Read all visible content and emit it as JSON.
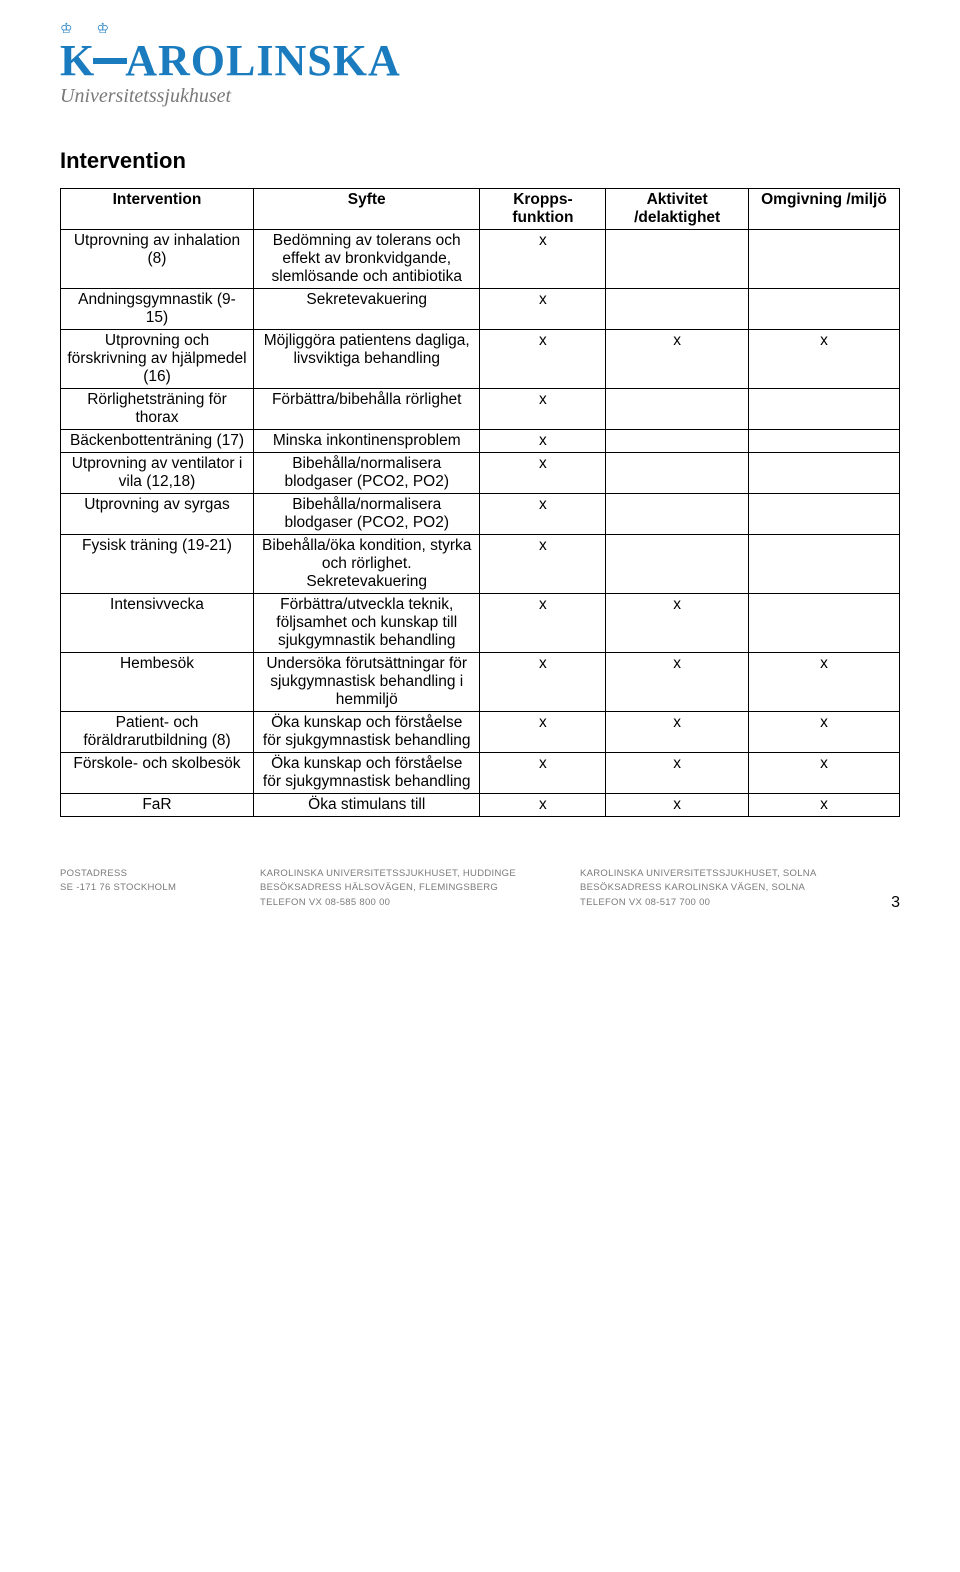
{
  "logo": {
    "name": "KAROLINSKA",
    "subtitle": "Universitetssjukhuset"
  },
  "section_title": "Intervention",
  "table": {
    "columns": [
      "Intervention",
      "Syfte",
      "Kropps-funktion",
      "Aktivitet /delaktighet",
      "Omgivning /miljö"
    ],
    "col_widths": [
      "23%",
      "27%",
      "15%",
      "17%",
      "18%"
    ],
    "rows": [
      {
        "intervention": "Utprovning av inhalation (8)",
        "syfte": "Bedömning av tolerans och effekt av bronkvidgande, slemlösande och antibiotika",
        "kf": "x",
        "ad": "",
        "om": ""
      },
      {
        "intervention": "Andningsgymnastik (9-15)",
        "syfte": "Sekretevakuering",
        "kf": "x",
        "ad": "",
        "om": ""
      },
      {
        "intervention": "Utprovning och förskrivning av hjälpmedel (16)",
        "syfte": "Möjliggöra patientens dagliga, livsviktiga behandling",
        "kf": "x",
        "ad": "x",
        "om": "x"
      },
      {
        "intervention": "Rörlighetsträning för thorax",
        "syfte": "Förbättra/bibehålla rörlighet",
        "kf": "x",
        "ad": "",
        "om": ""
      },
      {
        "intervention": "Bäckenbottenträning (17)",
        "syfte": "Minska inkontinensproblem",
        "kf": "x",
        "ad": "",
        "om": ""
      },
      {
        "intervention": "Utprovning av ventilator i vila (12,18)",
        "syfte": "Bibehålla/normalisera blodgaser (PCO2, PO2)",
        "kf": "x",
        "ad": "",
        "om": ""
      },
      {
        "intervention": "Utprovning av syrgas",
        "syfte": "Bibehålla/normalisera blodgaser (PCO2, PO2)",
        "kf": "x",
        "ad": "",
        "om": ""
      },
      {
        "intervention": "Fysisk träning (19-21)",
        "syfte": "Bibehålla/öka kondition, styrka och rörlighet. Sekretevakuering",
        "kf": "x",
        "ad": "",
        "om": ""
      },
      {
        "intervention": "Intensivvecka",
        "syfte": "Förbättra/utveckla teknik, följsamhet och kunskap till sjukgymnastik behandling",
        "kf": "x",
        "ad": "x",
        "om": ""
      },
      {
        "intervention": "Hembesök",
        "syfte": "Undersöka förutsättningar för sjukgymnastisk behandling i hemmiljö",
        "kf": "x",
        "ad": "x",
        "om": "x"
      },
      {
        "intervention": "Patient- och föräldrarutbildning (8)",
        "syfte": "Öka kunskap och förståelse för sjukgymnastisk behandling",
        "kf": "x",
        "ad": "x",
        "om": "x"
      },
      {
        "intervention": "Förskole- och skolbesök",
        "syfte": "Öka kunskap och förståelse för sjukgymnastisk behandling",
        "kf": "x",
        "ad": "x",
        "om": "x"
      },
      {
        "intervention": "FaR",
        "syfte": "Öka stimulans till",
        "kf": "x",
        "ad": "x",
        "om": "x"
      }
    ]
  },
  "footer": {
    "left": {
      "l1_label": "POSTADRESS",
      "l2": "SE -171 76 STOCKHOLM"
    },
    "mid": {
      "l1": "KAROLINSKA UNIVERSITETSSJUKHUSET, HUDDINGE",
      "l2": "BESÖKSADRESS HÄLSOVÄGEN, FLEMINGSBERG",
      "l3": "TELEFON VX 08-585 800 00"
    },
    "right": {
      "l1": "KAROLINSKA UNIVERSITETSSJUKHUSET, SOLNA",
      "l2": "BESÖKSADRESS KAROLINSKA VÄGEN, SOLNA",
      "l3": "TELEFON VX 08-517 700 00"
    }
  },
  "page_number": "3"
}
